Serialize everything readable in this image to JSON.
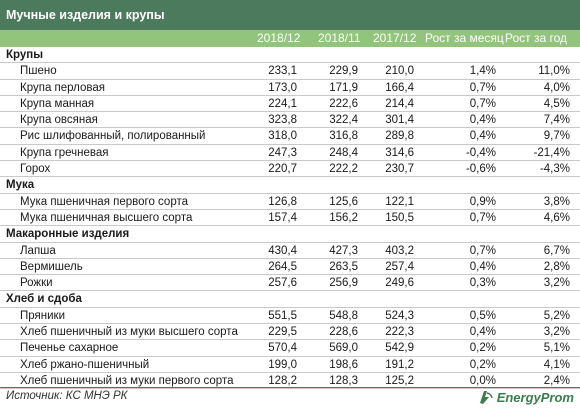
{
  "title": "Мучные изделия и крупы",
  "headers": [
    "2018/12",
    "2018/11",
    "2017/12",
    "Рост за месяц",
    "Рост за год"
  ],
  "groups": [
    {
      "category": "Крупы",
      "items": [
        {
          "name": "Пшено",
          "v": [
            "233,1",
            "229,9",
            "210,0",
            "1,4%",
            "11,0%"
          ]
        },
        {
          "name": "Крупа перловая",
          "v": [
            "173,0",
            "171,9",
            "166,4",
            "0,7%",
            "4,0%"
          ]
        },
        {
          "name": "Крупа манная",
          "v": [
            "224,1",
            "222,6",
            "214,4",
            "0,7%",
            "4,5%"
          ]
        },
        {
          "name": "Крупа овсяная",
          "v": [
            "323,8",
            "322,4",
            "301,4",
            "0,4%",
            "7,4%"
          ]
        },
        {
          "name": "Рис шлифованный, полированный",
          "v": [
            "318,0",
            "316,8",
            "289,8",
            "0,4%",
            "9,7%"
          ]
        },
        {
          "name": "Крупа гречневая",
          "v": [
            "247,3",
            "248,4",
            "314,6",
            "-0,4%",
            "-21,4%"
          ]
        },
        {
          "name": "Горох",
          "v": [
            "220,7",
            "222,2",
            "230,7",
            "-0,6%",
            "-4,3%"
          ]
        }
      ]
    },
    {
      "category": "Мука",
      "items": [
        {
          "name": "Мука пшеничная первого сорта",
          "v": [
            "126,8",
            "125,6",
            "122,1",
            "0,9%",
            "3,8%"
          ]
        },
        {
          "name": "Мука пшеничная высшего сорта",
          "v": [
            "157,4",
            "156,2",
            "150,5",
            "0,7%",
            "4,6%"
          ]
        }
      ]
    },
    {
      "category": "Макаронные изделия",
      "items": [
        {
          "name": "Лапша",
          "v": [
            "430,4",
            "427,3",
            "403,2",
            "0,7%",
            "6,7%"
          ]
        },
        {
          "name": "Вермишель",
          "v": [
            "264,5",
            "263,5",
            "257,4",
            "0,4%",
            "2,8%"
          ]
        },
        {
          "name": "Рожки",
          "v": [
            "257,6",
            "256,9",
            "249,6",
            "0,3%",
            "3,2%"
          ]
        }
      ]
    },
    {
      "category": "Хлеб и сдоба",
      "items": [
        {
          "name": "Пряники",
          "v": [
            "551,5",
            "548,8",
            "524,3",
            "0,5%",
            "5,2%"
          ]
        },
        {
          "name": "Хлеб пшеничный из муки высшего сорта",
          "v": [
            "229,5",
            "228,6",
            "222,3",
            "0,4%",
            "3,2%"
          ]
        },
        {
          "name": "Печенье сахарное",
          "v": [
            "570,4",
            "569,0",
            "542,9",
            "0,2%",
            "5,1%"
          ]
        },
        {
          "name": "Хлеб ржано-пшеничный",
          "v": [
            "199,0",
            "198,6",
            "191,2",
            "0,2%",
            "4,1%"
          ]
        },
        {
          "name": "Хлеб пшеничный из муки первого сорта",
          "v": [
            "128,2",
            "128,3",
            "125,2",
            "0,0%",
            "2,4%"
          ]
        }
      ]
    }
  ],
  "source": "Источник: КС МНЭ РК",
  "logo": {
    "text": "EnergyProm",
    "icon": "energyprom-logo-icon",
    "color": "#3a7d4e"
  },
  "colors": {
    "title_bg": "#4b7b5c",
    "header_bg": "#93c47d"
  }
}
